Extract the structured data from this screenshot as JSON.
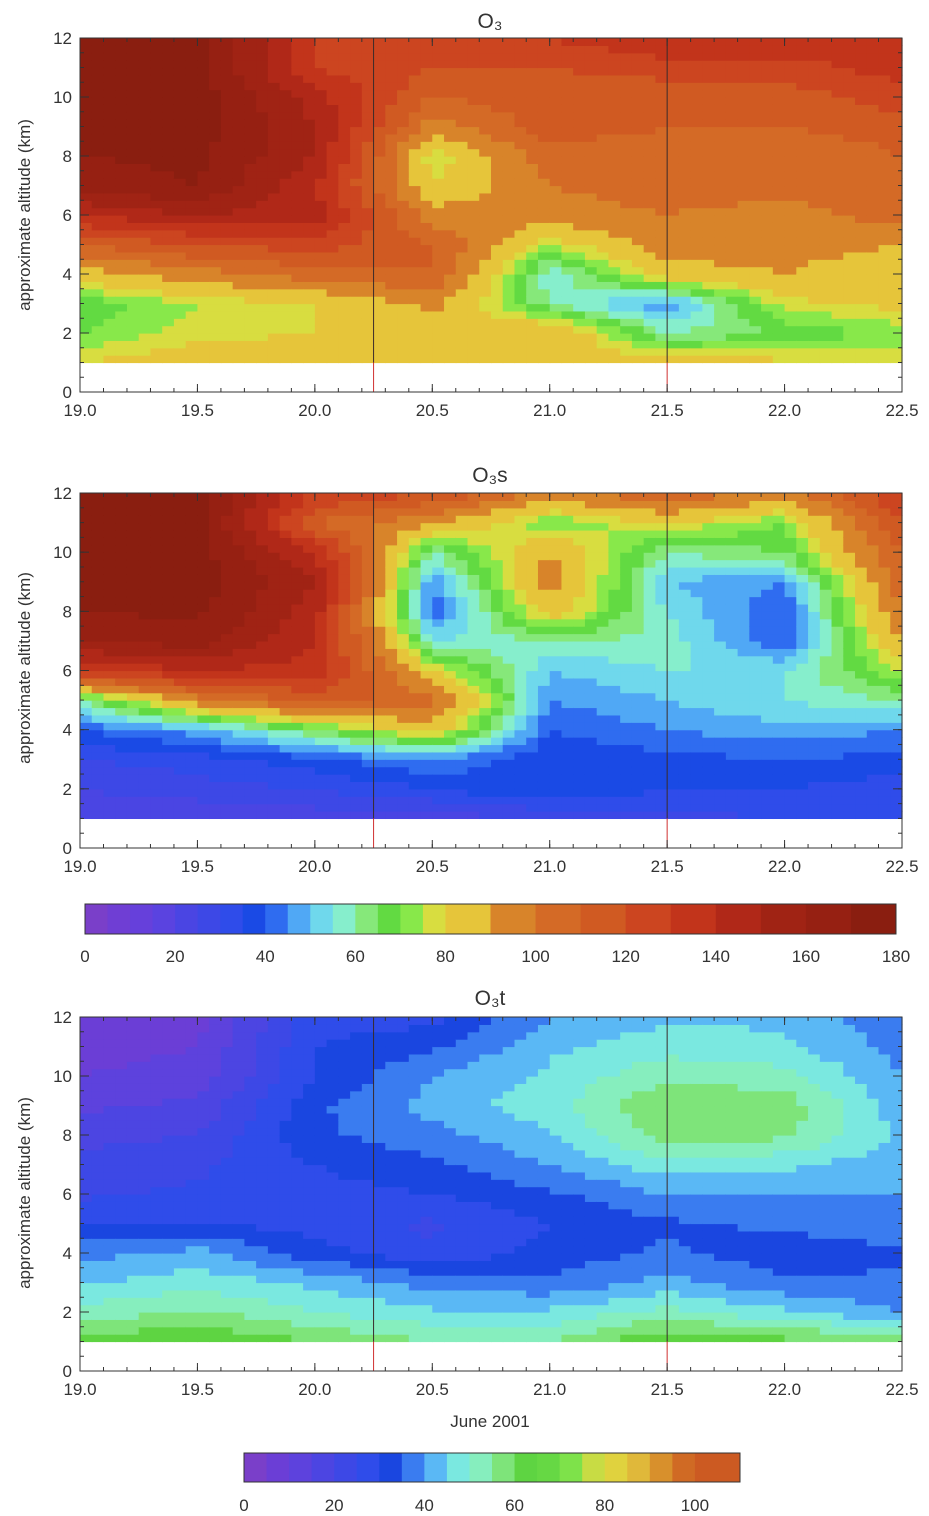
{
  "chart_data": [
    {
      "type": "heatmap",
      "title": "O₃",
      "ylabel": "approximate altitude (km)",
      "xlabel": "",
      "xlim": [
        19.0,
        22.5
      ],
      "ylim": [
        0,
        12
      ],
      "x_ticks": [
        "19.0",
        "19.5",
        "20.0",
        "20.5",
        "21.0",
        "21.5",
        "22.0",
        "22.5"
      ],
      "y_ticks": [
        "0",
        "2",
        "4",
        "6",
        "8",
        "10",
        "12"
      ],
      "marker_lines_x": [
        20.25,
        21.5
      ],
      "colorbar": "colorbar_a",
      "x": [
        19.0,
        19.5,
        20.0,
        20.5,
        21.0,
        21.5,
        22.0,
        22.5
      ],
      "y": [
        1,
        2,
        3,
        4,
        5,
        6,
        7,
        8,
        9,
        10,
        11,
        12
      ],
      "z": [
        [
          80,
          85,
          85,
          85,
          85,
          85,
          82,
          80
        ],
        [
          70,
          78,
          80,
          88,
          90,
          60,
          65,
          72
        ],
        [
          65,
          75,
          80,
          92,
          60,
          45,
          78,
          82
        ],
        [
          85,
          95,
          105,
          110,
          55,
          85,
          90,
          80
        ],
        [
          110,
          120,
          125,
          110,
          75,
          95,
          95,
          90
        ],
        [
          140,
          150,
          145,
          95,
          95,
          100,
          95,
          105
        ],
        [
          165,
          170,
          140,
          80,
          100,
          105,
          105,
          110
        ],
        [
          170,
          172,
          150,
          75,
          105,
          105,
          100,
          110
        ],
        [
          172,
          175,
          150,
          95,
          115,
          110,
          110,
          115
        ],
        [
          175,
          175,
          145,
          110,
          115,
          112,
          115,
          125
        ],
        [
          175,
          175,
          130,
          120,
          120,
          125,
          125,
          135
        ],
        [
          175,
          175,
          130,
          130,
          130,
          140,
          140,
          140
        ]
      ]
    },
    {
      "type": "heatmap",
      "title": "O₃s",
      "ylabel": "approximate altitude (km)",
      "xlabel": "",
      "xlim": [
        19.0,
        22.5
      ],
      "ylim": [
        0,
        12
      ],
      "x_ticks": [
        "19.0",
        "19.5",
        "20.0",
        "20.5",
        "21.0",
        "21.5",
        "22.0",
        "22.5"
      ],
      "y_ticks": [
        "0",
        "2",
        "4",
        "6",
        "8",
        "10",
        "12"
      ],
      "marker_lines_x": [
        20.25,
        21.5
      ],
      "colorbar": "colorbar_a",
      "x": [
        19.0,
        19.5,
        20.0,
        20.5,
        21.0,
        21.5,
        22.0,
        22.5
      ],
      "y": [
        1,
        2,
        3,
        4,
        5,
        6,
        7,
        8,
        9,
        10,
        11,
        12
      ],
      "z": [
        [
          20,
          20,
          22,
          22,
          25,
          28,
          30,
          30
        ],
        [
          25,
          28,
          30,
          35,
          40,
          35,
          35,
          32
        ],
        [
          30,
          32,
          38,
          45,
          35,
          38,
          40,
          38
        ],
        [
          40,
          48,
          65,
          85,
          40,
          45,
          48,
          45
        ],
        [
          60,
          95,
          115,
          105,
          45,
          50,
          55,
          60
        ],
        [
          130,
          140,
          135,
          80,
          50,
          55,
          55,
          75
        ],
        [
          160,
          165,
          140,
          55,
          60,
          58,
          40,
          90
        ],
        [
          170,
          172,
          145,
          40,
          85,
          55,
          40,
          100
        ],
        [
          172,
          175,
          150,
          45,
          95,
          50,
          45,
          105
        ],
        [
          175,
          175,
          140,
          60,
          90,
          60,
          65,
          110
        ],
        [
          175,
          175,
          110,
          90,
          70,
          80,
          70,
          120
        ],
        [
          175,
          175,
          130,
          120,
          95,
          110,
          95,
          130
        ]
      ]
    },
    {
      "type": "heatmap",
      "title": "O₃t",
      "ylabel": "approximate altitude (km)",
      "xlabel": "June 2001",
      "xlim": [
        19.0,
        22.5
      ],
      "ylim": [
        0,
        12
      ],
      "x_ticks": [
        "19.0",
        "19.5",
        "20.0",
        "20.5",
        "21.0",
        "21.5",
        "22.0",
        "22.5"
      ],
      "y_ticks": [
        "0",
        "2",
        "4",
        "6",
        "8",
        "10",
        "12"
      ],
      "marker_lines_x": [
        20.25,
        21.5
      ],
      "colorbar": "colorbar_b",
      "x": [
        19.0,
        19.5,
        20.0,
        20.5,
        21.0,
        21.5,
        22.0,
        22.5
      ],
      "y": [
        1,
        2,
        3,
        4,
        5,
        6,
        7,
        8,
        9,
        10,
        11,
        12
      ],
      "z": [
        [
          62,
          65,
          60,
          55,
          55,
          65,
          62,
          60
        ],
        [
          52,
          56,
          50,
          46,
          46,
          52,
          46,
          40
        ],
        [
          44,
          48,
          44,
          38,
          36,
          42,
          36,
          36
        ],
        [
          38,
          42,
          32,
          26,
          32,
          36,
          32,
          34
        ],
        [
          30,
          30,
          28,
          24,
          30,
          34,
          36,
          38
        ],
        [
          24,
          26,
          28,
          30,
          34,
          40,
          40,
          40
        ],
        [
          22,
          24,
          30,
          34,
          40,
          48,
          46,
          42
        ],
        [
          18,
          20,
          34,
          38,
          44,
          58,
          56,
          44
        ],
        [
          14,
          16,
          34,
          42,
          48,
          60,
          58,
          42
        ],
        [
          10,
          12,
          30,
          40,
          46,
          54,
          52,
          40
        ],
        [
          8,
          10,
          30,
          34,
          44,
          48,
          46,
          38
        ],
        [
          6,
          8,
          28,
          28,
          40,
          44,
          44,
          36
        ]
      ]
    }
  ],
  "colorbar_a": {
    "ticks": [
      "0",
      "20",
      "40",
      "60",
      "80",
      "100",
      "120",
      "140",
      "160",
      "180"
    ],
    "min": 0,
    "max": 180,
    "edges": [
      0,
      5,
      10,
      15,
      20,
      25,
      30,
      35,
      40,
      45,
      50,
      55,
      60,
      65,
      70,
      75,
      80,
      90,
      100,
      110,
      120,
      130,
      140,
      150,
      160,
      170,
      180
    ],
    "colors": [
      "#7a3fc9",
      "#6f3ed4",
      "#6640db",
      "#5a43e0",
      "#4a45e3",
      "#3d48e6",
      "#2f4cea",
      "#1a4ae5",
      "#2f6cf0",
      "#50a8f5",
      "#6fd8ec",
      "#86eecc",
      "#86e87a",
      "#62da42",
      "#88e84a",
      "#d8dd40",
      "#e6c53a",
      "#d8842a",
      "#d46a26",
      "#d05a22",
      "#cc4520",
      "#c2341b",
      "#b02818",
      "#a02314",
      "#962012",
      "#8a1e10"
    ]
  },
  "colorbar_b": {
    "ticks": [
      "0",
      "20",
      "40",
      "60",
      "80",
      "100"
    ],
    "min": 0,
    "max": 110,
    "edges": [
      0,
      5,
      10,
      15,
      20,
      25,
      30,
      35,
      40,
      45,
      50,
      55,
      60,
      65,
      70,
      75,
      80,
      85,
      90,
      95,
      100,
      110
    ],
    "colors": [
      "#7a3fc9",
      "#6b3ed6",
      "#5d42dd",
      "#4c45e2",
      "#3d48e6",
      "#2f4cea",
      "#1a46e0",
      "#3a7cf0",
      "#5ab8f5",
      "#7ae8e0",
      "#86eebe",
      "#7ee47a",
      "#5ed442",
      "#66d844",
      "#7ee24a",
      "#c8dc44",
      "#e0d23e",
      "#e0b83a",
      "#d8902c",
      "#d06a24",
      "#cc5a22"
    ]
  }
}
